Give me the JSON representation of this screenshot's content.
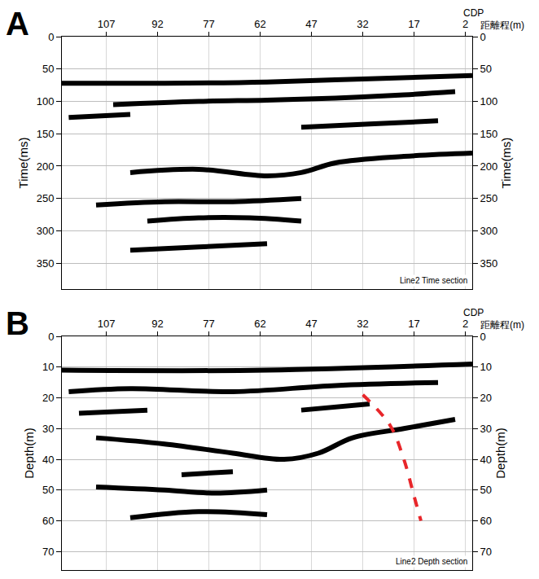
{
  "chart_data": [
    {
      "type": "line",
      "title": "A",
      "annotation": "Line2 Time section",
      "xlabel": [
        "CDP",
        "距離程(m)"
      ],
      "ylabel": "Time(ms)",
      "y2label": "Time(ms)",
      "xlim": [
        120,
        0
      ],
      "xticks": [
        107,
        92,
        77,
        62,
        47,
        32,
        17,
        2
      ],
      "ylim": [
        0,
        390
      ],
      "yticks": [
        0,
        50,
        100,
        150,
        200,
        250,
        300,
        350
      ],
      "y2lim": [
        0,
        390
      ],
      "y2ticks": [
        0,
        50,
        100,
        150,
        200,
        250,
        300,
        350
      ],
      "grid": true,
      "series": [
        {
          "color": "#000000",
          "line_style": "solid",
          "x": [
            120,
            90,
            60,
            30,
            0
          ],
          "values": [
            72,
            72,
            70,
            65,
            60
          ]
        },
        {
          "color": "#000000",
          "line_style": "solid",
          "x": [
            105,
            80,
            60,
            40,
            20,
            5
          ],
          "values": [
            105,
            100,
            98,
            95,
            90,
            85
          ]
        },
        {
          "color": "#000000",
          "line_style": "solid",
          "x": [
            118,
            100
          ],
          "values": [
            125,
            120
          ]
        },
        {
          "color": "#000000",
          "line_style": "solid",
          "x": [
            50,
            30,
            10
          ],
          "values": [
            140,
            135,
            130
          ]
        },
        {
          "color": "#000000",
          "line_style": "solid",
          "x": [
            100,
            80,
            60,
            50,
            40,
            20,
            0
          ],
          "values": [
            210,
            205,
            215,
            210,
            195,
            185,
            180
          ]
        },
        {
          "color": "#000000",
          "line_style": "solid",
          "x": [
            110,
            90,
            70,
            50
          ],
          "values": [
            260,
            255,
            255,
            250
          ]
        },
        {
          "color": "#000000",
          "line_style": "solid",
          "x": [
            95,
            80,
            65,
            50
          ],
          "values": [
            285,
            280,
            280,
            285
          ]
        },
        {
          "color": "#000000",
          "line_style": "solid",
          "x": [
            100,
            80,
            60
          ],
          "values": [
            330,
            325,
            320
          ]
        }
      ]
    },
    {
      "type": "line",
      "title": "B",
      "annotation": "Line2 Depth section",
      "xlabel": [
        "CDP",
        "距離程(m)"
      ],
      "ylabel": "Depth(m)",
      "y2label": "Depth(m)",
      "xlim": [
        120,
        0
      ],
      "xticks": [
        107,
        92,
        77,
        62,
        47,
        32,
        17,
        2
      ],
      "ylim": [
        0,
        76
      ],
      "yticks": [
        0,
        10,
        20,
        30,
        40,
        50,
        60,
        70
      ],
      "y2lim": [
        0,
        76
      ],
      "y2ticks": [
        0,
        10,
        20,
        30,
        40,
        50,
        60,
        70
      ],
      "grid": true,
      "series": [
        {
          "color": "#000000",
          "line_style": "solid",
          "x": [
            120,
            60,
            0
          ],
          "values": [
            11,
            11,
            9
          ]
        },
        {
          "color": "#000000",
          "line_style": "solid",
          "x": [
            118,
            100,
            70,
            40,
            10
          ],
          "values": [
            18,
            17,
            18,
            16,
            15
          ]
        },
        {
          "color": "#000000",
          "line_style": "solid",
          "x": [
            115,
            95
          ],
          "values": [
            25,
            24
          ]
        },
        {
          "color": "#000000",
          "line_style": "solid",
          "x": [
            50,
            30
          ],
          "values": [
            24,
            22
          ]
        },
        {
          "color": "#000000",
          "line_style": "solid",
          "x": [
            110,
            90,
            70,
            55,
            45,
            35,
            20,
            5
          ],
          "values": [
            33,
            35,
            38,
            40,
            38,
            33,
            30,
            27
          ]
        },
        {
          "color": "#000000",
          "line_style": "solid",
          "x": [
            85,
            70
          ],
          "values": [
            45,
            44
          ]
        },
        {
          "color": "#000000",
          "line_style": "solid",
          "x": [
            110,
            90,
            75,
            60
          ],
          "values": [
            49,
            50,
            51,
            50
          ]
        },
        {
          "color": "#000000",
          "line_style": "solid",
          "x": [
            100,
            80,
            60
          ],
          "values": [
            59,
            57,
            58
          ]
        },
        {
          "color": "#e8262a",
          "line_style": "dash",
          "x": [
            32,
            24,
            20,
            17,
            15
          ],
          "values": [
            19,
            29,
            40,
            52,
            60
          ]
        }
      ]
    }
  ]
}
